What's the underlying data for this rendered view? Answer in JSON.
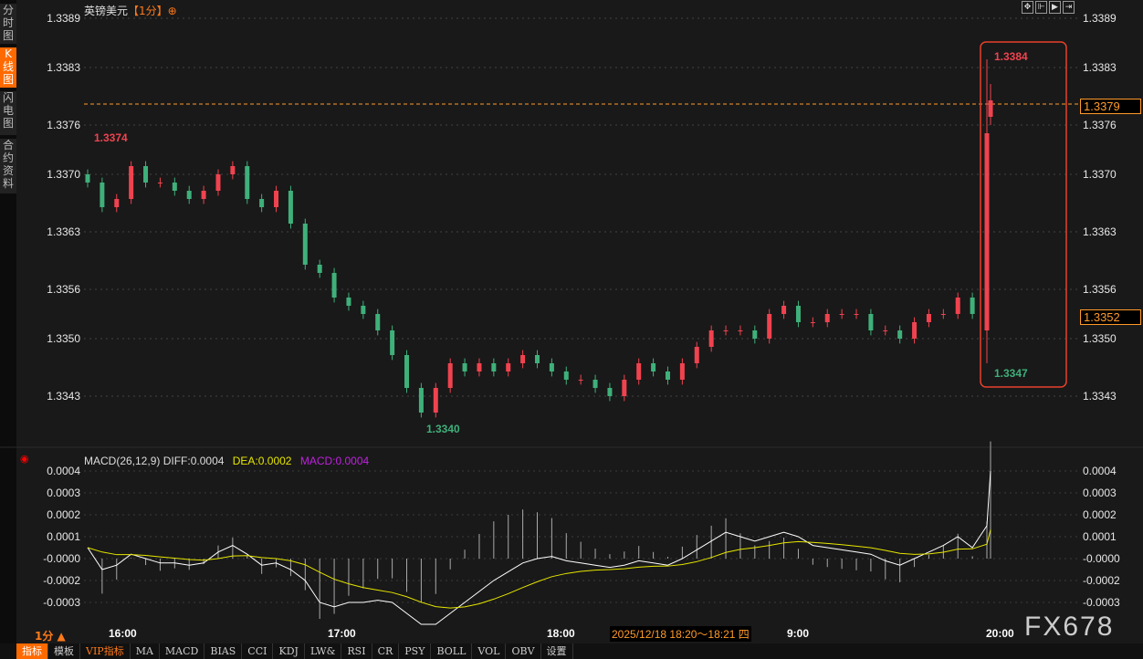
{
  "sidebar": {
    "tabs": [
      {
        "label": "分时图",
        "active": false
      },
      {
        "label": "K线图",
        "active": true
      },
      {
        "label": "闪电图",
        "active": false
      },
      {
        "label": "合约资料",
        "active": false
      }
    ]
  },
  "header": {
    "symbol": "英镑美元",
    "period": "【1分】",
    "icon": "crosshair-circle-icon",
    "tools": [
      "move-icon",
      "fit-left-icon",
      "play-icon",
      "jump-end-icon"
    ]
  },
  "price_box": {
    "current": "1.3379",
    "cursor": "1.3352"
  },
  "annotations": {
    "high_left": "1.3374",
    "low": "1.3340",
    "spike_high": "1.3384",
    "spike_low": "1.3347"
  },
  "macd_header": {
    "name": "MACD(26,12,9)",
    "diff": "DIFF:0.0004",
    "dea": "DEA:0.0002",
    "macd": "MACD:0.0004"
  },
  "period_label": "1分 ▲",
  "crosshair_date": "2025/12/18 18:20～18:21 四",
  "watermark": "FX678",
  "toolbar": [
    "指标",
    "模板",
    "VIP指标",
    "MA",
    "MACD",
    "BIAS",
    "CCI",
    "KDJ",
    "LW&",
    "RSI",
    "CR",
    "PSY",
    "BOLL",
    "VOL",
    "OBV",
    "设置"
  ],
  "colors": {
    "up": "#f0434f",
    "down": "#3fb07a",
    "accent": "#ff6a00",
    "dea": "#e6e600",
    "macd": "#c020e0",
    "diff": "#ffffff"
  },
  "chart_data": {
    "type": "candlestick",
    "price_ticks": [
      "1.3389",
      "1.3383",
      "1.3376",
      "1.3370",
      "1.3363",
      "1.3356",
      "1.3350",
      "1.3343"
    ],
    "price_range": [
      1.3339,
      1.3389
    ],
    "time_ticks": [
      "16:00",
      "17:00",
      "18:00",
      "9:00",
      "20:00"
    ],
    "current_price": 1.3379,
    "closes": [
      1.3369,
      1.3366,
      1.3367,
      1.3371,
      1.3369,
      1.3369,
      1.3368,
      1.3367,
      1.3368,
      1.337,
      1.3371,
      1.3367,
      1.3366,
      1.3368,
      1.3364,
      1.3359,
      1.3358,
      1.3355,
      1.3354,
      1.3353,
      1.3351,
      1.3348,
      1.3344,
      1.3341,
      1.3344,
      1.3347,
      1.3346,
      1.3347,
      1.3346,
      1.3347,
      1.3348,
      1.3347,
      1.3346,
      1.3345,
      1.3345,
      1.3344,
      1.3343,
      1.3345,
      1.3347,
      1.3346,
      1.3345,
      1.3347,
      1.3349,
      1.3351,
      1.3351,
      1.3351,
      1.335,
      1.3353,
      1.3354,
      1.3352,
      1.3352,
      1.3353,
      1.3353,
      1.3353,
      1.3351,
      1.3351,
      1.335,
      1.3352,
      1.3353,
      1.3353,
      1.3355,
      1.3353
    ],
    "final_candles": [
      [
        1.3351,
        1.3384,
        1.3347,
        1.3375
      ],
      [
        1.3377,
        1.3381,
        1.3376,
        1.3379
      ]
    ],
    "macd_ticks": [
      "0.0004",
      "0.0003",
      "0.0002",
      "0.0001",
      "-0.0000",
      "-0.0002",
      "-0.0003"
    ],
    "macd_range": [
      -0.0003,
      0.0004
    ],
    "diff": [
      5e-05,
      -5e-05,
      -3e-05,
      2e-05,
      0,
      -2e-05,
      -2e-05,
      -3e-05,
      -2e-05,
      3e-05,
      6e-05,
      2e-05,
      -3e-05,
      -2e-05,
      -5e-05,
      -0.0001,
      -0.0002,
      -0.00022,
      -0.0002,
      -0.0002,
      -0.00019,
      -0.0002,
      -0.00025,
      -0.0003,
      -0.0003,
      -0.00025,
      -0.0002,
      -0.00015,
      -0.0001,
      -6e-05,
      -2e-05,
      0,
      1e-05,
      -1e-05,
      -2e-05,
      -3e-05,
      -4e-05,
      -3e-05,
      -1e-05,
      -2e-05,
      -3e-05,
      0,
      4e-05,
      8e-05,
      0.00012,
      0.0001,
      8e-05,
      0.0001,
      0.00012,
      0.0001,
      6e-05,
      5e-05,
      4e-05,
      3e-05,
      2e-05,
      -1e-05,
      -3e-05,
      0,
      3e-05,
      6e-05,
      0.0001,
      5e-05,
      0.00015,
      0.0004
    ]
  }
}
